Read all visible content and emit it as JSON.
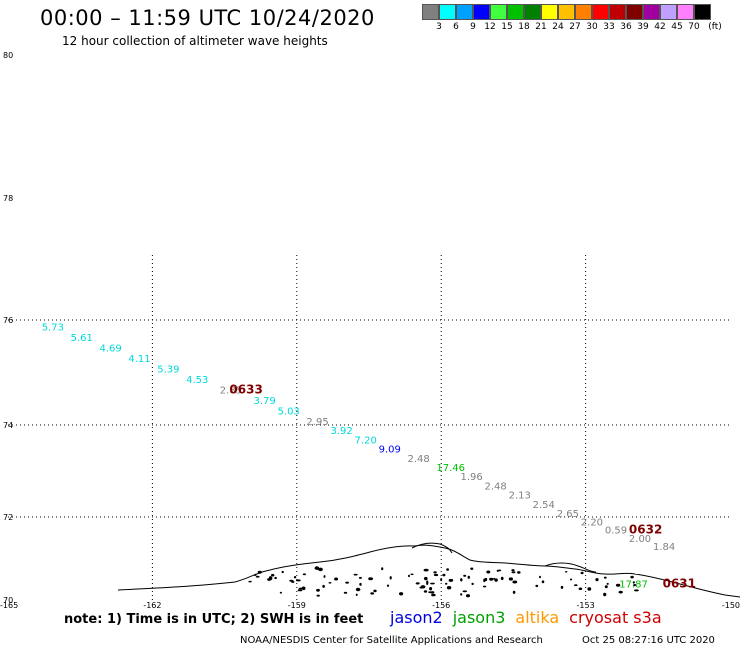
{
  "title": "00:00 – 11:59 UTC 10/24/2020",
  "subtitle": "12 hour collection of altimeter wave heights",
  "legend": {
    "unit": "(ft)",
    "items": [
      {
        "label": "3",
        "color": "#808080"
      },
      {
        "label": "6",
        "color": "#00ffff"
      },
      {
        "label": "9",
        "color": "#00a0ff"
      },
      {
        "label": "12",
        "color": "#0000ff"
      },
      {
        "label": "15",
        "color": "#40ff40"
      },
      {
        "label": "18",
        "color": "#00c000"
      },
      {
        "label": "21",
        "color": "#008000"
      },
      {
        "label": "24",
        "color": "#ffff00"
      },
      {
        "label": "27",
        "color": "#ffc000"
      },
      {
        "label": "30",
        "color": "#ff8000"
      },
      {
        "label": "33",
        "color": "#ff0000"
      },
      {
        "label": "36",
        "color": "#c00000"
      },
      {
        "label": "39",
        "color": "#800000"
      },
      {
        "label": "42",
        "color": "#a000a0"
      },
      {
        "label": "45",
        "color": "#c0a0ff"
      },
      {
        "label": "70",
        "color": "#ff80ff"
      },
      {
        "label": "",
        "color": "#000000"
      }
    ]
  },
  "map": {
    "lat_ticks": [
      "80",
      "78",
      "76",
      "74",
      "72",
      "70"
    ],
    "lon_ticks": [
      "-165",
      "-162",
      "-159",
      "-156",
      "-153",
      "-150"
    ],
    "extent": {
      "lon": [
        -165,
        -150
      ],
      "lat": [
        70,
        80
      ]
    },
    "gridlines": {
      "lon": [
        -162,
        -159,
        -156,
        -153
      ],
      "lat": [
        76,
        74,
        72
      ]
    }
  },
  "wave_heights": [
    {
      "text": "5.73",
      "color": "#00d8d8",
      "lon": -164.3,
      "lat": 75.8
    },
    {
      "text": "5.61",
      "color": "#00d8d8",
      "lon": -163.7,
      "lat": 75.6
    },
    {
      "text": "4.69",
      "color": "#00d8d8",
      "lon": -163.1,
      "lat": 75.4
    },
    {
      "text": "4.11",
      "color": "#00d8d8",
      "lon": -162.5,
      "lat": 75.2
    },
    {
      "text": "5.39",
      "color": "#00d8d8",
      "lon": -161.9,
      "lat": 75.0
    },
    {
      "text": "4.53",
      "color": "#00d8d8",
      "lon": -161.3,
      "lat": 74.8
    },
    {
      "text": "2.85",
      "color": "#808080",
      "lon": -160.6,
      "lat": 74.6
    },
    {
      "text": "3.79",
      "color": "#00d8d8",
      "lon": -159.9,
      "lat": 74.4
    },
    {
      "text": "5.03",
      "color": "#00d8d8",
      "lon": -159.4,
      "lat": 74.2
    },
    {
      "text": "2.95",
      "color": "#808080",
      "lon": -158.8,
      "lat": 74.0
    },
    {
      "text": "3.92",
      "color": "#00d8d8",
      "lon": -158.3,
      "lat": 73.8
    },
    {
      "text": "7.20",
      "color": "#00d8d8",
      "lon": -157.8,
      "lat": 73.6
    },
    {
      "text": "9.09",
      "color": "#0000ff",
      "lon": -157.3,
      "lat": 73.4
    },
    {
      "text": "2.48",
      "color": "#808080",
      "lon": -156.7,
      "lat": 73.2
    },
    {
      "text": "17.46",
      "color": "#00c000",
      "lon": -156.1,
      "lat": 73.0
    },
    {
      "text": "1.96",
      "color": "#808080",
      "lon": -155.6,
      "lat": 72.8
    },
    {
      "text": "2.48",
      "color": "#808080",
      "lon": -155.1,
      "lat": 72.6
    },
    {
      "text": "2.13",
      "color": "#808080",
      "lon": -154.6,
      "lat": 72.4
    },
    {
      "text": "2.54",
      "color": "#808080",
      "lon": -154.1,
      "lat": 72.2
    },
    {
      "text": "2.65",
      "color": "#808080",
      "lon": -153.6,
      "lat": 72.0
    },
    {
      "text": "2.20",
      "color": "#808080",
      "lon": -153.1,
      "lat": 71.8
    },
    {
      "text": "0.59",
      "color": "#808080",
      "lon": -152.6,
      "lat": 71.6
    },
    {
      "text": "2.00",
      "color": "#808080",
      "lon": -152.1,
      "lat": 71.4
    },
    {
      "text": "1.84",
      "color": "#808080",
      "lon": -151.6,
      "lat": 71.2
    },
    {
      "text": "17.87",
      "color": "#00c000",
      "lon": -152.3,
      "lat": 70.3
    }
  ],
  "pass_times": [
    {
      "text": "0633",
      "color": "#800000",
      "lon": -160.4,
      "lat": 74.6
    },
    {
      "text": "0632",
      "color": "#800000",
      "lon": -152.1,
      "lat": 71.6
    },
    {
      "text": "0631",
      "color": "#800000",
      "lon": -151.4,
      "lat": 70.3
    }
  ],
  "note": "note:  1) Time is in UTC;  2) SWH is in feet",
  "missions": [
    {
      "name": "jason2",
      "color": "#0000e0"
    },
    {
      "name": "jason3",
      "color": "#00a000"
    },
    {
      "name": "altika",
      "color": "#ff9900"
    },
    {
      "name": "cryosat s3a",
      "color": "#cc0000"
    }
  ],
  "footer": {
    "credit": "NOAA/NESDIS Center for Satellite Applications and Research",
    "date": "Oct 25 08:27:16 UTC 2020"
  }
}
